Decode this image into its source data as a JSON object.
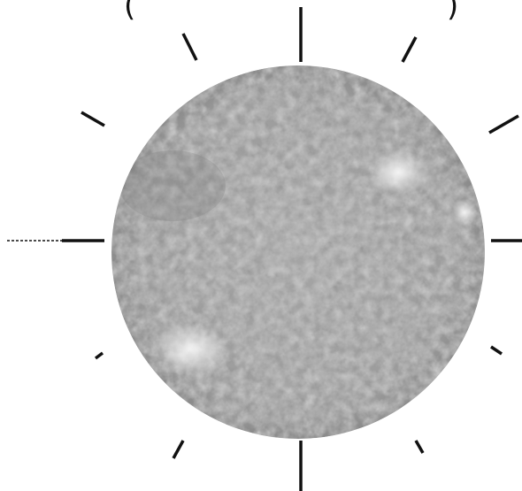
{
  "header": {
    "open_paren": "(",
    "close_paren": ")"
  }
}
